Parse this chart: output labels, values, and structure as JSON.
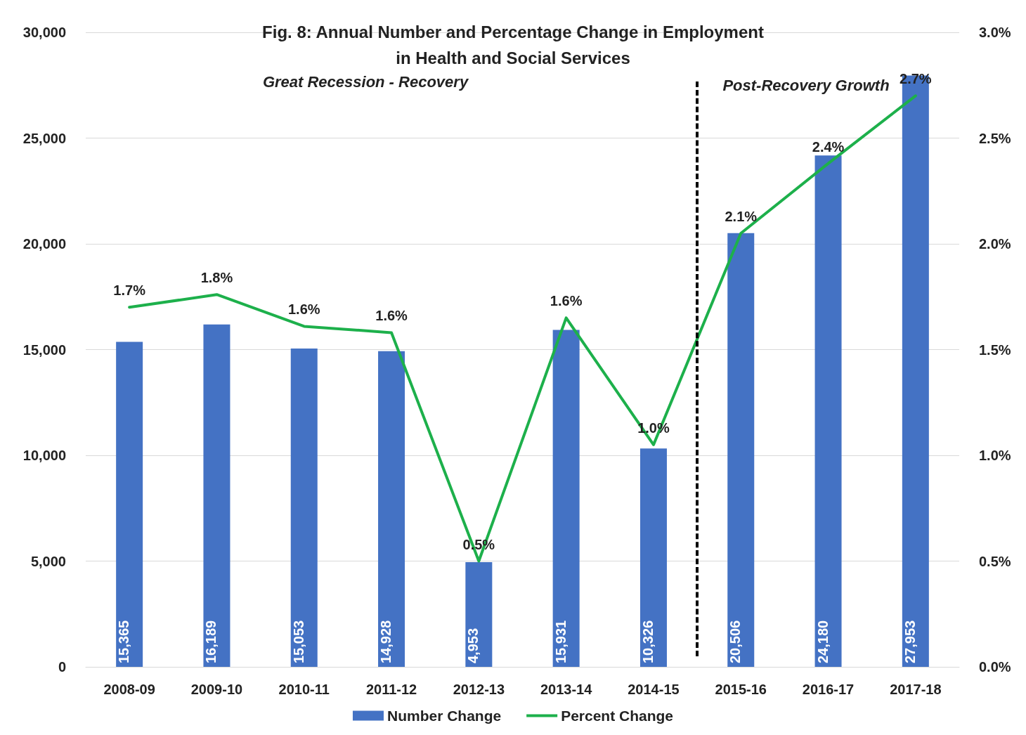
{
  "chart_data": {
    "type": "bar",
    "title": "Fig. 8: Annual Number and Percentage Change in Employment\nin Health and Social Services",
    "categories": [
      "2008-09",
      "2009-10",
      "2010-11",
      "2011-12",
      "2012-13",
      "2013-14",
      "2014-15",
      "2015-16",
      "2016-17",
      "2017-18"
    ],
    "series": [
      {
        "name": "Number Change",
        "color": "#4472c4",
        "values": [
          15365,
          16189,
          15053,
          14928,
          4953,
          15931,
          10326,
          20506,
          24180,
          27953
        ],
        "value_labels": [
          "15,365",
          "16,189",
          "15,053",
          "14,928",
          "4,953",
          "15,931",
          "10,326",
          "20,506",
          "24,180",
          "27,953"
        ]
      },
      {
        "name": "Percent Change",
        "type": "line",
        "axis": "y2",
        "color": "#1db04b",
        "values": [
          1.7,
          1.76,
          1.61,
          1.58,
          0.5,
          1.65,
          1.05,
          2.05,
          2.38,
          2.7
        ],
        "value_labels": [
          "1.7%",
          "1.8%",
          "1.6%",
          "1.6%",
          "0.5%",
          "1.6%",
          "1.0%",
          "2.1%",
          "2.4%",
          "2.7%"
        ]
      }
    ],
    "ylim": [
      0,
      30000
    ],
    "yticks": [
      {
        "value": 0,
        "label": "0"
      },
      {
        "value": 5000,
        "label": "5,000"
      },
      {
        "value": 10000,
        "label": "10,000"
      },
      {
        "value": 15000,
        "label": "15,000"
      },
      {
        "value": 20000,
        "label": "20,000"
      },
      {
        "value": 25000,
        "label": "25,000"
      },
      {
        "value": 30000,
        "label": "30,000"
      }
    ],
    "y2lim": [
      0,
      3
    ],
    "y2ticks": [
      {
        "value": 0,
        "label": "0.0%"
      },
      {
        "value": 0.5,
        "label": "0.5%"
      },
      {
        "value": 1,
        "label": "1.0%"
      },
      {
        "value": 1.5,
        "label": "1.5%"
      },
      {
        "value": 2,
        "label": "2.0%"
      },
      {
        "value": 2.5,
        "label": "2.5%"
      },
      {
        "value": 3,
        "label": "3.0%"
      }
    ],
    "ref_lines": [
      {
        "axis": "x",
        "value": "2015-16",
        "color": "#000000",
        "line_style": "dashed"
      }
    ],
    "annotations": [
      "Great Recession - Recovery",
      "Post-Recovery Growth"
    ],
    "grid": "y",
    "legend": "bottom",
    "marker": "none",
    "line_style": "solid"
  }
}
